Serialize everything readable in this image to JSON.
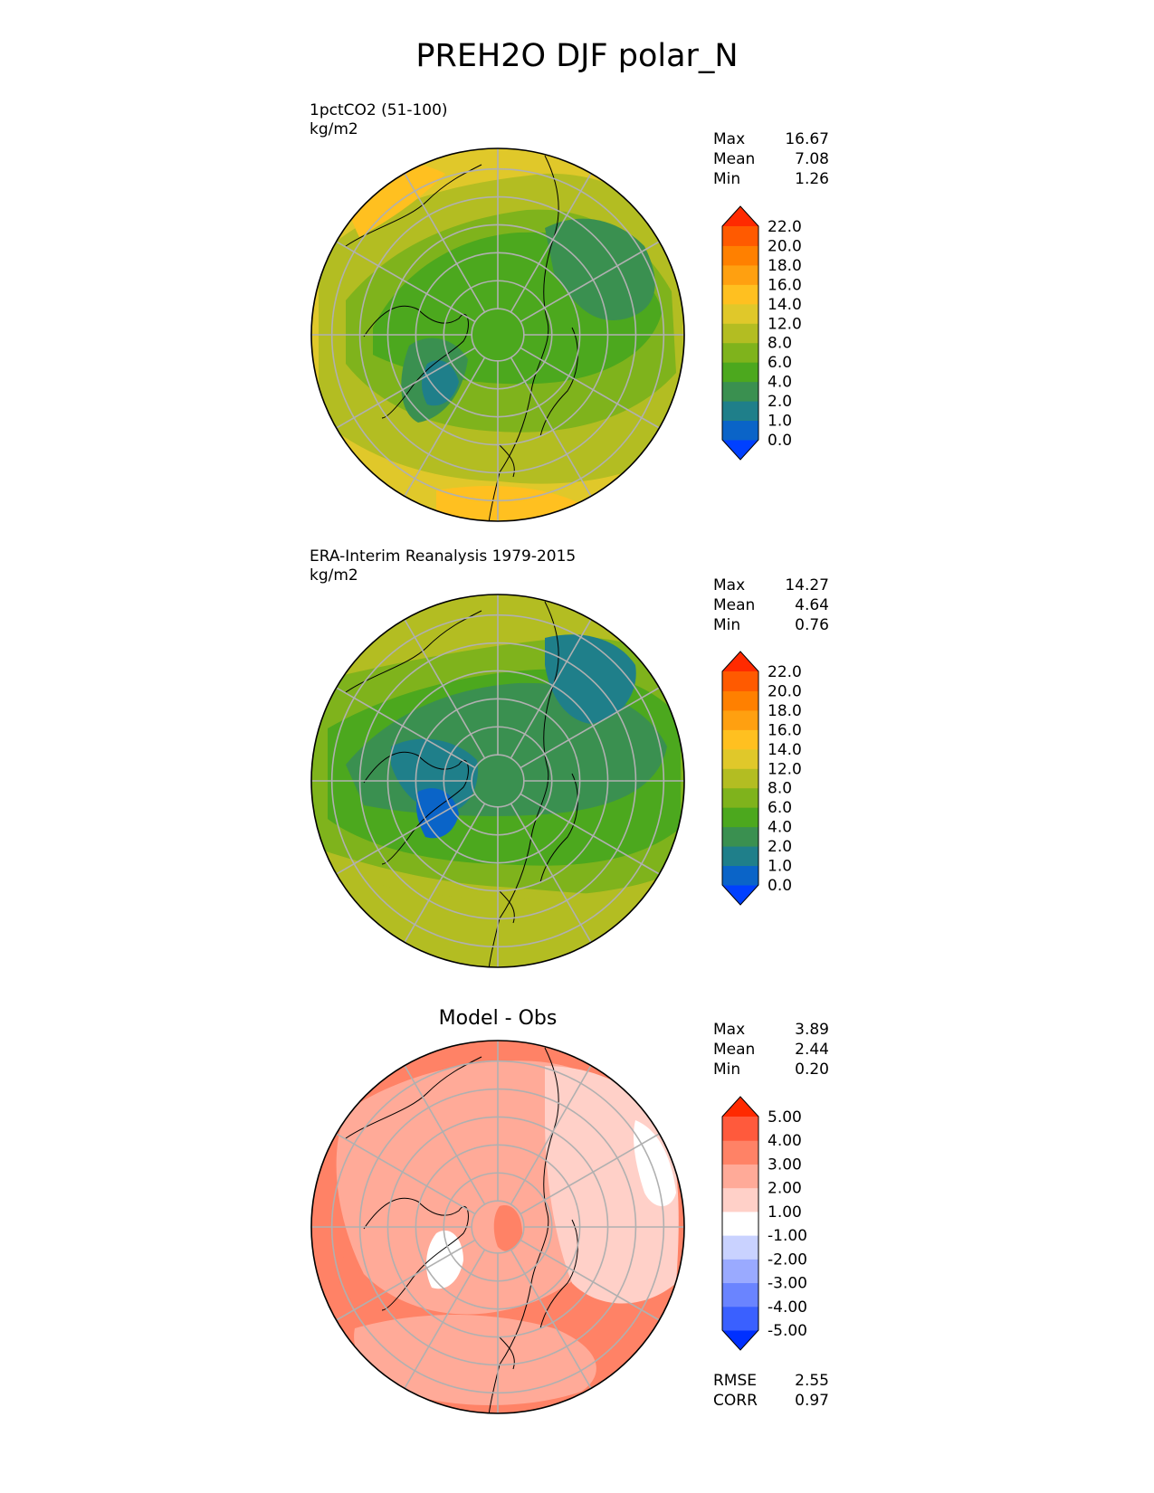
{
  "title": "PREH2O DJF polar_N",
  "panels": [
    {
      "title_lines": [
        "1pctCO2 (51-100)",
        "kg/m2"
      ],
      "stats": [
        {
          "label": "Max",
          "value": "16.67"
        },
        {
          "label": "Mean",
          "value": "7.08"
        },
        {
          "label": "Min",
          "value": "1.26"
        }
      ],
      "colorbar_ticks": [
        "22.0",
        "20.0",
        "18.0",
        "16.0",
        "14.0",
        "12.0",
        "8.0",
        "6.0",
        "4.0",
        "2.0",
        "1.0",
        "0.0"
      ]
    },
    {
      "title_lines": [
        "ERA-Interim Reanalysis 1979-2015",
        "kg/m2"
      ],
      "stats": [
        {
          "label": "Max",
          "value": "14.27"
        },
        {
          "label": "Mean",
          "value": "4.64"
        },
        {
          "label": "Min",
          "value": "0.76"
        }
      ],
      "colorbar_ticks": [
        "22.0",
        "20.0",
        "18.0",
        "16.0",
        "14.0",
        "12.0",
        "8.0",
        "6.0",
        "4.0",
        "2.0",
        "1.0",
        "0.0"
      ]
    },
    {
      "title": "Model - Obs",
      "stats": [
        {
          "label": "Max",
          "value": "3.89"
        },
        {
          "label": "Mean",
          "value": "2.44"
        },
        {
          "label": "Min",
          "value": "0.20"
        }
      ],
      "colorbar_ticks": [
        "5.00",
        "4.00",
        "3.00",
        "2.00",
        "1.00",
        "-1.00",
        "-2.00",
        "-3.00",
        "-4.00",
        "-5.00"
      ],
      "extra_stats": [
        {
          "label": "RMSE",
          "value": "2.55"
        },
        {
          "label": "CORR",
          "value": "0.97"
        }
      ]
    }
  ],
  "chart_data": [
    {
      "type": "heatmap",
      "title": "1pctCO2 (51-100)",
      "units": "kg/m2",
      "projection": "north polar stereographic",
      "levels": [
        0.0,
        1.0,
        2.0,
        4.0,
        6.0,
        8.0,
        12.0,
        14.0,
        16.0,
        18.0,
        20.0,
        22.0
      ],
      "colors": [
        "#0040ff",
        "#0a64c8",
        "#1f7f8a",
        "#3a9050",
        "#4ca81e",
        "#7fb31c",
        "#b3bd22",
        "#e0c82a",
        "#ffc020",
        "#ffa010",
        "#ff8000",
        "#ff5a00",
        "#ff2a00"
      ],
      "max": 16.67,
      "mean": 7.08,
      "min": 1.26
    },
    {
      "type": "heatmap",
      "title": "ERA-Interim Reanalysis 1979-2015",
      "units": "kg/m2",
      "projection": "north polar stereographic",
      "levels": [
        0.0,
        1.0,
        2.0,
        4.0,
        6.0,
        8.0,
        12.0,
        14.0,
        16.0,
        18.0,
        20.0,
        22.0
      ],
      "colors": [
        "#0040ff",
        "#0a64c8",
        "#1f7f8a",
        "#3a9050",
        "#4ca81e",
        "#7fb31c",
        "#b3bd22",
        "#e0c82a",
        "#ffc020",
        "#ffa010",
        "#ff8000",
        "#ff5a00",
        "#ff2a00"
      ],
      "max": 14.27,
      "mean": 4.64,
      "min": 0.76
    },
    {
      "type": "heatmap",
      "title": "Model - Obs",
      "projection": "north polar stereographic",
      "levels": [
        -5.0,
        -4.0,
        -3.0,
        -2.0,
        -1.0,
        1.0,
        2.0,
        3.0,
        4.0,
        5.0
      ],
      "colors": [
        "#0030ff",
        "#3a60ff",
        "#6a84ff",
        "#9aaaff",
        "#c9d2ff",
        "#ffffff",
        "#ffd0c8",
        "#ffaa98",
        "#ff8266",
        "#ff5a3c",
        "#ff2a00"
      ],
      "max": 3.89,
      "mean": 2.44,
      "min": 0.2,
      "rmse": 2.55,
      "corr": 0.97
    }
  ]
}
